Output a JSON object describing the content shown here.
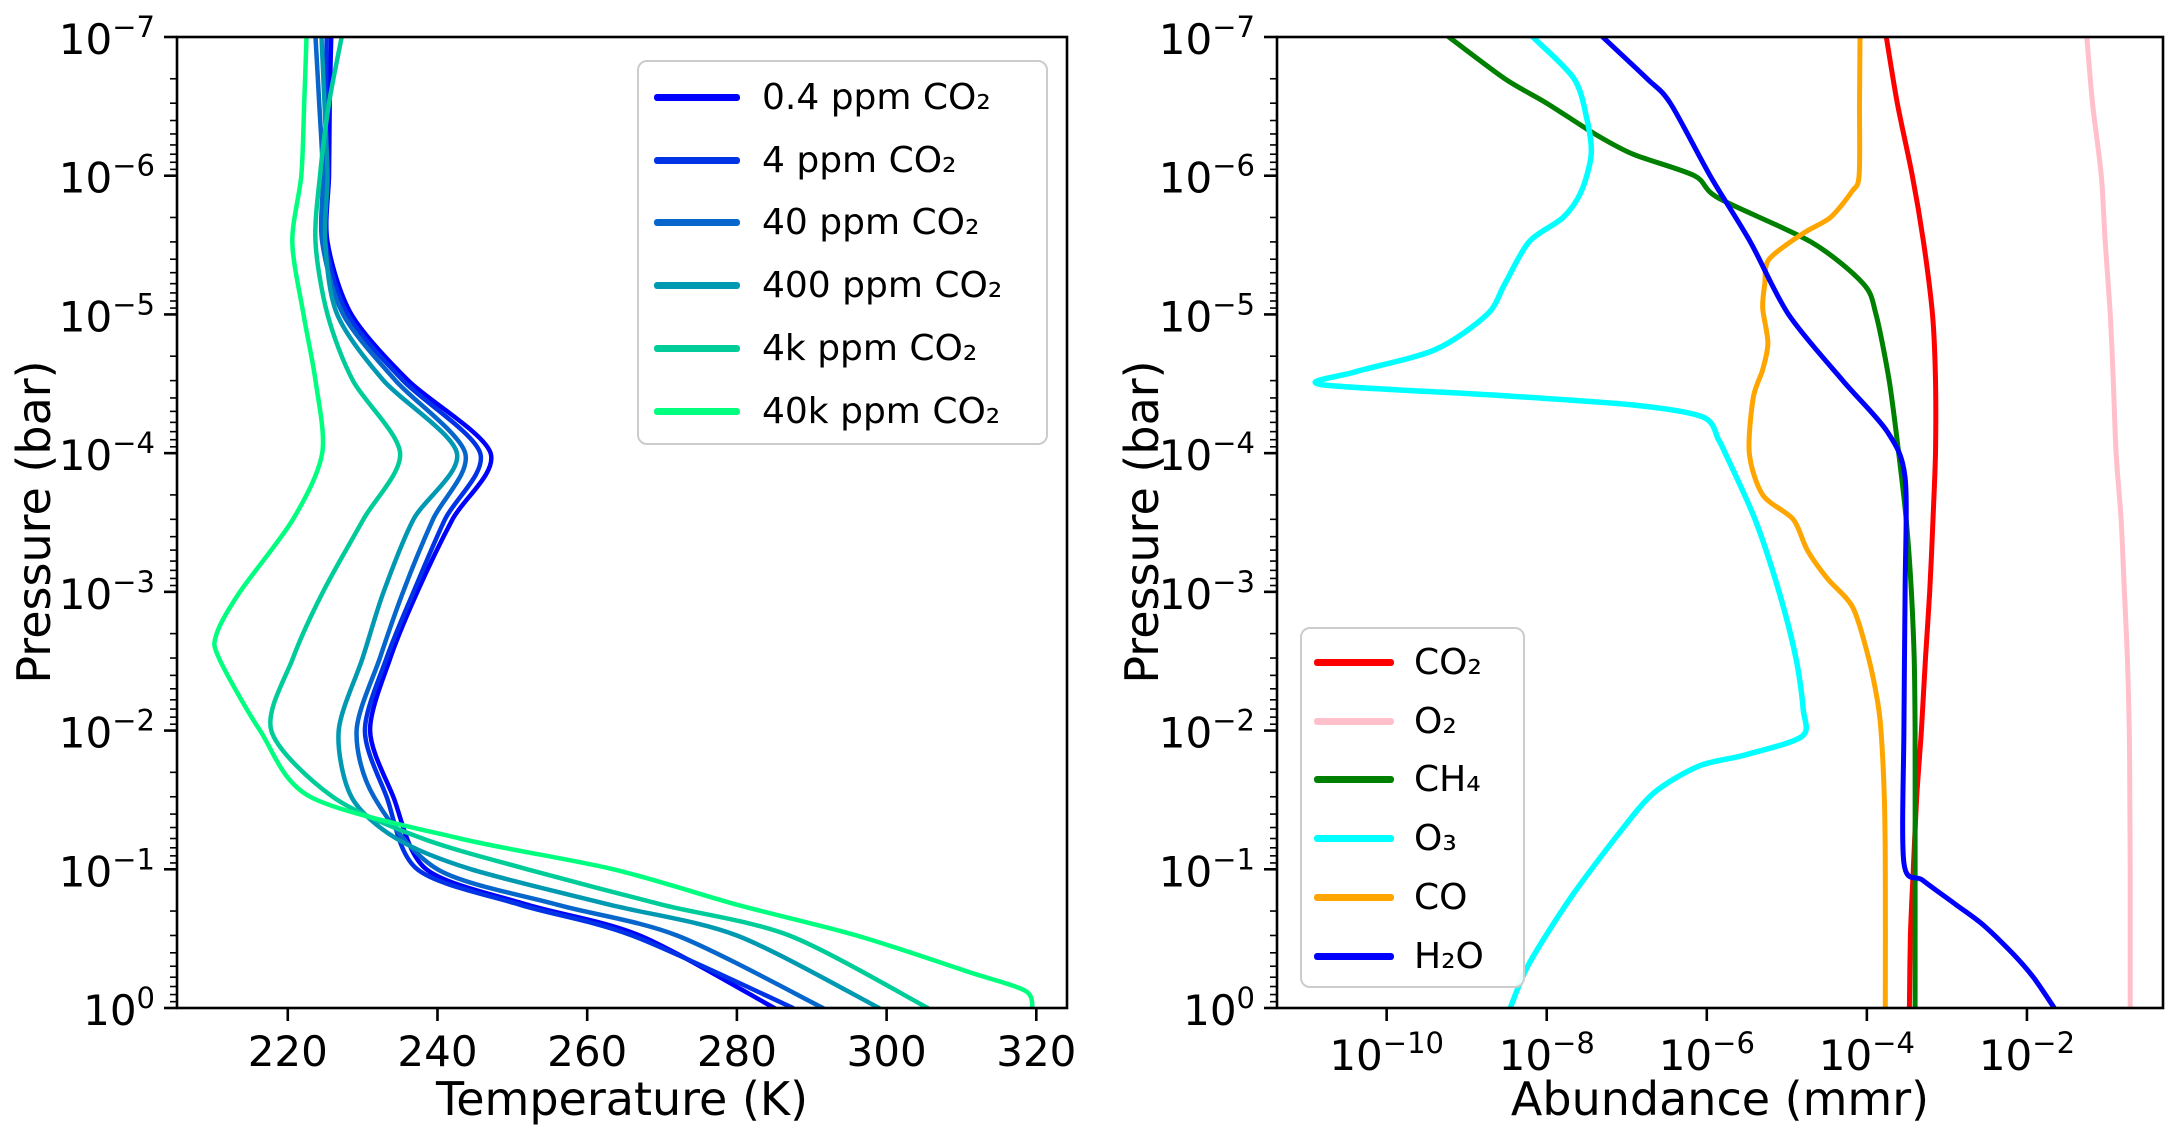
{
  "figure": {
    "background": "#ffffff"
  },
  "chart_data": [
    {
      "type": "line",
      "title": "",
      "xlabel": "Temperature (K)",
      "ylabel": "Pressure (bar)",
      "x_scale": "linear",
      "y_scale": "log",
      "xlim": [
        205.2,
        324.1
      ],
      "ylim_exponents": [
        -7,
        0
      ],
      "x_ticks": [
        220,
        240,
        260,
        280,
        300,
        320
      ],
      "y_tick_exponents": [
        -7,
        -6,
        -5,
        -4,
        -3,
        -2,
        -1,
        0
      ],
      "y_axis_inverted": true,
      "grid": false,
      "legend": {
        "location": "upper right",
        "items": [
          {
            "label": "0.4 ppm CO₂",
            "color": "#0000ff"
          },
          {
            "label": "4 ppm CO₂",
            "color": "#0033e5"
          },
          {
            "label": "40 ppm CO₂",
            "color": "#0666cc"
          },
          {
            "label": "400 ppm CO₂",
            "color": "#0099b2"
          },
          {
            "label": "4k ppm CO₂",
            "color": "#00cc99"
          },
          {
            "label": "40k ppm CO₂",
            "color": "#00ff7f"
          }
        ]
      },
      "series": [
        {
          "name": "0.4 ppm CO₂",
          "color": "#0000ff",
          "width": 4.5,
          "points": [
            [
              225.8,
              1e-07
            ],
            [
              225.6,
              3e-07
            ],
            [
              225.5,
              1e-06
            ],
            [
              225.3,
              3e-06
            ],
            [
              228.5,
              1e-05
            ],
            [
              236.1,
              3e-05
            ],
            [
              247.1,
              0.0001
            ],
            [
              242.0,
              0.0003
            ],
            [
              237.3,
              0.001
            ],
            [
              233.7,
              0.003
            ],
            [
              231.0,
              0.01
            ],
            [
              234.1,
              0.03
            ],
            [
              238.5,
              0.1
            ],
            [
              252,
              0.18
            ],
            [
              267,
              0.3
            ],
            [
              285,
              1
            ]
          ]
        },
        {
          "name": "4 ppm CO₂",
          "color": "#0033e5",
          "width": 4.5,
          "points": [
            [
              225.2,
              1e-07
            ],
            [
              225.1,
              3e-07
            ],
            [
              225.1,
              1e-06
            ],
            [
              225.0,
              3e-06
            ],
            [
              228.0,
              1e-05
            ],
            [
              235.4,
              3e-05
            ],
            [
              245.7,
              0.0001
            ],
            [
              241.0,
              0.0003
            ],
            [
              236.8,
              0.001
            ],
            [
              233.2,
              0.003
            ],
            [
              230.3,
              0.01
            ],
            [
              233.2,
              0.03
            ],
            [
              237.3,
              0.1
            ],
            [
              251,
              0.18
            ],
            [
              266,
              0.3
            ],
            [
              287.5,
              1
            ]
          ]
        },
        {
          "name": "40 ppm CO₂",
          "color": "#0666cc",
          "width": 4.5,
          "points": [
            [
              223.7,
              1e-07
            ],
            [
              224.2,
              3e-07
            ],
            [
              224.7,
              1e-06
            ],
            [
              224.6,
              3e-06
            ],
            [
              227.4,
              1e-05
            ],
            [
              234.4,
              3e-05
            ],
            [
              243.7,
              0.0001
            ],
            [
              239.4,
              0.0003
            ],
            [
              235.4,
              0.001
            ],
            [
              232.3,
              0.003
            ],
            [
              229.2,
              0.01
            ],
            [
              231.5,
              0.03
            ],
            [
              240.0,
              0.1
            ],
            [
              256,
              0.18
            ],
            [
              272,
              0.3
            ],
            [
              291.5,
              1
            ]
          ]
        },
        {
          "name": "400 ppm CO₂",
          "color": "#0099b2",
          "width": 4.5,
          "points": [
            [
              224.5,
              1e-07
            ],
            [
              224.9,
              3e-07
            ],
            [
              225.3,
              1e-06
            ],
            [
              225.0,
              3e-06
            ],
            [
              226.6,
              1e-05
            ],
            [
              232.8,
              3e-05
            ],
            [
              242.6,
              0.0001
            ],
            [
              236.8,
              0.0003
            ],
            [
              232.8,
              0.001
            ],
            [
              230.0,
              0.003
            ],
            [
              226.8,
              0.01
            ],
            [
              228.5,
              0.03
            ],
            [
              234.5,
              0.06
            ],
            [
              244.5,
              0.1
            ],
            [
              263,
              0.18
            ],
            [
              280,
              0.3
            ],
            [
              299,
              1
            ]
          ]
        },
        {
          "name": "4k ppm CO₂",
          "color": "#00cc99",
          "width": 4.5,
          "points": [
            [
              227.2,
              1e-07
            ],
            [
              225.5,
              3e-07
            ],
            [
              224.3,
              1e-06
            ],
            [
              223.7,
              3e-06
            ],
            [
              225.3,
              1e-05
            ],
            [
              228.7,
              3e-05
            ],
            [
              235.0,
              0.0001
            ],
            [
              230.1,
              0.0003
            ],
            [
              224.7,
              0.001
            ],
            [
              220.7,
              0.003
            ],
            [
              217.8,
              0.01
            ],
            [
              226.0,
              0.03
            ],
            [
              238.0,
              0.06
            ],
            [
              252.0,
              0.1
            ],
            [
              270,
              0.18
            ],
            [
              287,
              0.3
            ],
            [
              305.5,
              1
            ]
          ]
        },
        {
          "name": "40k ppm CO₂",
          "color": "#00ff7f",
          "width": 4.5,
          "points": [
            [
              222.5,
              1e-07
            ],
            [
              222.2,
              3e-07
            ],
            [
              221.8,
              1e-06
            ],
            [
              220.6,
              3e-06
            ],
            [
              222.1,
              1e-05
            ],
            [
              223.7,
              3e-05
            ],
            [
              224.6,
              0.0001
            ],
            [
              220.7,
              0.0003
            ],
            [
              213.6,
              0.001
            ],
            [
              210.5,
              0.002
            ],
            [
              210.8,
              0.003
            ],
            [
              216.3,
              0.01
            ],
            [
              223.0,
              0.03
            ],
            [
              243.0,
              0.06
            ],
            [
              263.5,
              0.1
            ],
            [
              280,
              0.18
            ],
            [
              296,
              0.3
            ],
            [
              311,
              0.55
            ],
            [
              318.5,
              0.75
            ],
            [
              319.5,
              1
            ]
          ]
        }
      ]
    },
    {
      "type": "line",
      "title": "",
      "xlabel": "Abundance (mmr)",
      "ylabel": "Pressure (bar)",
      "x_scale": "log",
      "y_scale": "log",
      "xlim_exponents": [
        -11.37,
        -0.3
      ],
      "ylim_exponents": [
        -7,
        0
      ],
      "x_tick_exponents": [
        -10,
        -8,
        -6,
        -4,
        -2
      ],
      "y_tick_exponents": [
        -7,
        -6,
        -5,
        -4,
        -3,
        -2,
        -1,
        0
      ],
      "y_axis_inverted": true,
      "grid": false,
      "legend": {
        "location": "lower left",
        "items": [
          {
            "label": "CO₂",
            "color": "#ff0000"
          },
          {
            "label": "O₂",
            "color": "#ffc0cb"
          },
          {
            "label": "CH₄",
            "color": "#008000"
          },
          {
            "label": "O₃",
            "color": "#00ffff"
          },
          {
            "label": "CO",
            "color": "#ffa500"
          },
          {
            "label": "H₂O",
            "color": "#0000ff"
          }
        ]
      },
      "series": [
        {
          "name": "CO₂",
          "color": "#ff0000",
          "width": 5,
          "points": [
            [
              0.000175,
              1e-07
            ],
            [
              0.00024,
              3e-07
            ],
            [
              0.00037,
              1e-06
            ],
            [
              0.00051,
              3e-06
            ],
            [
              0.00066,
              1e-05
            ],
            [
              0.00072,
              3e-05
            ],
            [
              0.00072,
              0.0001
            ],
            [
              0.00067,
              0.0003
            ],
            [
              0.00061,
              0.001
            ],
            [
              0.00054,
              0.003
            ],
            [
              0.00048,
              0.01
            ],
            [
              0.00042,
              0.03
            ],
            [
              0.00038,
              0.1
            ],
            [
              0.00035,
              0.3
            ],
            [
              0.00034,
              1
            ]
          ]
        },
        {
          "name": "O₂",
          "color": "#ffc0cb",
          "width": 5,
          "points": [
            [
              0.056,
              1e-07
            ],
            [
              0.066,
              3e-07
            ],
            [
              0.085,
              1e-06
            ],
            [
              0.095,
              3e-06
            ],
            [
              0.11,
              1e-05
            ],
            [
              0.12,
              3e-05
            ],
            [
              0.13,
              0.0001
            ],
            [
              0.15,
              0.0003
            ],
            [
              0.165,
              0.001
            ],
            [
              0.18,
              0.003
            ],
            [
              0.19,
              0.01
            ],
            [
              0.193,
              0.03
            ],
            [
              0.195,
              0.1
            ],
            [
              0.195,
              0.3
            ],
            [
              0.195,
              1
            ]
          ]
        },
        {
          "name": "CH₄",
          "color": "#008000",
          "width": 5,
          "points": [
            [
              6e-10,
              1e-07
            ],
            [
              3e-09,
              2e-07
            ],
            [
              1e-08,
              3e-07
            ],
            [
              4e-08,
              5e-07
            ],
            [
              1.2e-07,
              7e-07
            ],
            [
              7e-07,
              1e-06
            ],
            [
              1.4e-06,
              1.45e-06
            ],
            [
              2e-05,
              3e-06
            ],
            [
              9e-05,
              6e-06
            ],
            [
              0.00013,
              1e-05
            ],
            [
              0.00019,
              3e-05
            ],
            [
              0.00025,
              0.0001
            ],
            [
              0.00031,
              0.0003
            ],
            [
              0.00036,
              0.001
            ],
            [
              0.00039,
              0.003
            ],
            [
              0.0004,
              0.01
            ],
            [
              0.0004,
              0.1
            ],
            [
              0.0004,
              1
            ]
          ]
        },
        {
          "name": "O₃",
          "color": "#00ffff",
          "width": 5.5,
          "points": [
            [
              6.7e-09,
              1e-07
            ],
            [
              2.2e-08,
              2e-07
            ],
            [
              3.2e-08,
              4e-07
            ],
            [
              3.6e-08,
              7e-07
            ],
            [
              2.7e-08,
              1.3e-06
            ],
            [
              1.6e-08,
              2e-06
            ],
            [
              6e-09,
              3e-06
            ],
            [
              3e-09,
              6e-06
            ],
            [
              1.8e-09,
              1e-05
            ],
            [
              4e-10,
              1.8e-05
            ],
            [
              4e-11,
              2.6e-05
            ],
            [
              1.5e-11,
              3.2e-05
            ],
            [
              2e-09,
              3.8e-05
            ],
            [
              1.2e-07,
              4.5e-05
            ],
            [
              9e-07,
              5.5e-05
            ],
            [
              1.4e-06,
              8e-05
            ],
            [
              1.7e-06,
              0.0001
            ],
            [
              4e-06,
              0.0003
            ],
            [
              8e-06,
              0.001
            ],
            [
              1.3e-05,
              0.003
            ],
            [
              1.6e-05,
              0.007
            ],
            [
              1.55e-05,
              0.011
            ],
            [
              3e-06,
              0.015
            ],
            [
              8e-07,
              0.018
            ],
            [
              2.2e-07,
              0.028
            ],
            [
              8e-08,
              0.055
            ],
            [
              2e-08,
              0.16
            ],
            [
              6e-09,
              0.48
            ],
            [
              3.5e-09,
              1
            ]
          ]
        },
        {
          "name": "CO",
          "color": "#ffa500",
          "width": 5,
          "points": [
            [
              8.2e-05,
              1e-07
            ],
            [
              8.1e-05,
              3e-07
            ],
            [
              8e-05,
              1e-06
            ],
            [
              6.5e-05,
              1.3e-06
            ],
            [
              3.5e-05,
              2e-06
            ],
            [
              1.6e-05,
              2.6e-06
            ],
            [
              6e-06,
              4e-06
            ],
            [
              5.3e-06,
              6e-06
            ],
            [
              5e-06,
              9e-06
            ],
            [
              5.8e-06,
              1.6e-05
            ],
            [
              5e-06,
              2.5e-05
            ],
            [
              3.8e-06,
              4e-05
            ],
            [
              3.4e-06,
              0.0001
            ],
            [
              5e-06,
              0.0002
            ],
            [
              1.2e-05,
              0.0003
            ],
            [
              1.8e-05,
              0.0005
            ],
            [
              3.2e-05,
              0.0008
            ],
            [
              6.7e-05,
              0.0013
            ],
            [
              0.000105,
              0.003
            ],
            [
              0.000135,
              0.006
            ],
            [
              0.00015,
              0.01
            ],
            [
              0.000165,
              0.03
            ],
            [
              0.00017,
              0.1
            ],
            [
              0.00017,
              1
            ]
          ]
        },
        {
          "name": "H₂O",
          "color": "#0000ff",
          "width": 5,
          "points": [
            [
              5e-08,
              1e-07
            ],
            [
              1.8e-07,
              2e-07
            ],
            [
              3.5e-07,
              3e-07
            ],
            [
              1.1e-06,
              1e-06
            ],
            [
              3.5e-06,
              3e-06
            ],
            [
              1.05e-05,
              1e-05
            ],
            [
              5e-05,
              3e-05
            ],
            [
              0.00018,
              7e-05
            ],
            [
              0.0003,
              0.00015
            ],
            [
              0.0003,
              0.001
            ],
            [
              0.00029,
              0.01
            ],
            [
              0.00029,
              0.09
            ],
            [
              0.0005,
              0.12
            ],
            [
              0.0013,
              0.18
            ],
            [
              0.0028,
              0.25
            ],
            [
              0.0065,
              0.4
            ],
            [
              0.012,
              0.6
            ],
            [
              0.022,
              1
            ]
          ]
        }
      ]
    }
  ]
}
